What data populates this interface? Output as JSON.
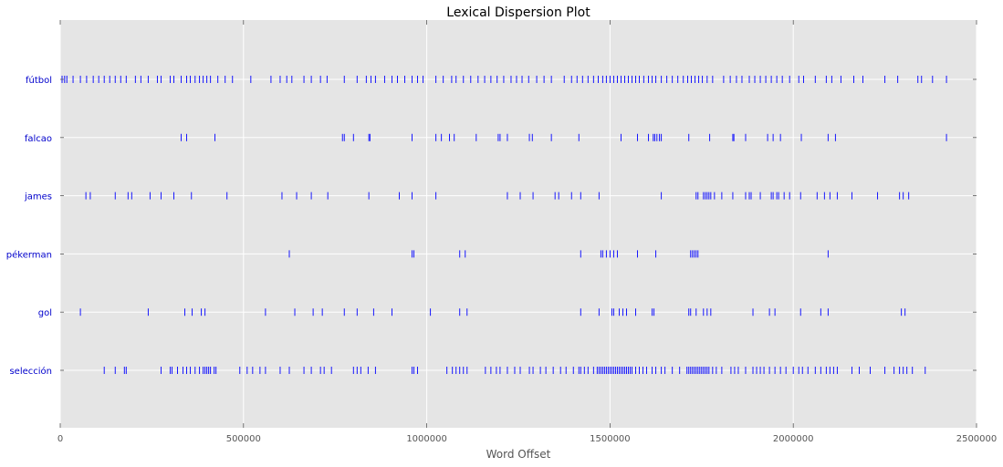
{
  "chart_data": {
    "type": "scatter",
    "title": "Lexical Dispersion Plot",
    "xlabel": "Word Offset",
    "ylabel": "",
    "xlim": [
      0,
      2500000
    ],
    "x_ticks": [
      0,
      500000,
      1000000,
      1500000,
      2000000,
      2500000
    ],
    "x_tick_labels": [
      "0",
      "500000",
      "1000000",
      "1500000",
      "2000000",
      "2500000"
    ],
    "categories": [
      "fútbol",
      "falcao",
      "james",
      "pékerman",
      "gol",
      "selección"
    ],
    "grid": true,
    "marker_color": "#0000ff",
    "series": [
      {
        "name": "fútbol",
        "x": [
          5000,
          12000,
          18000,
          35000,
          55000,
          72000,
          90000,
          105000,
          120000,
          135000,
          150000,
          165000,
          180000,
          205000,
          220000,
          240000,
          265000,
          275000,
          300000,
          310000,
          330000,
          345000,
          355000,
          368000,
          380000,
          390000,
          400000,
          410000,
          430000,
          450000,
          470000,
          520000,
          575000,
          600000,
          618000,
          632000,
          665000,
          685000,
          710000,
          728000,
          775000,
          810000,
          835000,
          848000,
          860000,
          885000,
          905000,
          920000,
          940000,
          960000,
          975000,
          990000,
          1025000,
          1045000,
          1068000,
          1080000,
          1100000,
          1120000,
          1140000,
          1158000,
          1175000,
          1192000,
          1210000,
          1230000,
          1245000,
          1260000,
          1278000,
          1300000,
          1320000,
          1340000,
          1375000,
          1395000,
          1410000,
          1425000,
          1440000,
          1455000,
          1468000,
          1480000,
          1490000,
          1500000,
          1510000,
          1520000,
          1530000,
          1540000,
          1550000,
          1560000,
          1570000,
          1580000,
          1592000,
          1605000,
          1615000,
          1625000,
          1640000,
          1655000,
          1670000,
          1685000,
          1700000,
          1712000,
          1722000,
          1732000,
          1742000,
          1752000,
          1765000,
          1780000,
          1810000,
          1828000,
          1845000,
          1860000,
          1880000,
          1895000,
          1910000,
          1925000,
          1940000,
          1955000,
          1970000,
          1990000,
          2015000,
          2028000,
          2060000,
          2090000,
          2105000,
          2130000,
          2165000,
          2190000,
          2250000,
          2285000,
          2340000,
          2350000,
          2380000,
          2418000
        ]
      },
      {
        "name": "falcao",
        "x": [
          330000,
          345000,
          422000,
          770000,
          775000,
          800000,
          842000,
          845000,
          960000,
          1025000,
          1040000,
          1062000,
          1075000,
          1135000,
          1195000,
          1200000,
          1220000,
          1280000,
          1288000,
          1340000,
          1415000,
          1530000,
          1575000,
          1605000,
          1618000,
          1622000,
          1628000,
          1635000,
          1640000,
          1715000,
          1772000,
          1835000,
          1838000,
          1870000,
          1930000,
          1945000,
          1965000,
          2022000,
          2095000,
          2115000,
          2418000
        ]
      },
      {
        "name": "james",
        "x": [
          70000,
          82000,
          150000,
          185000,
          195000,
          245000,
          275000,
          310000,
          358000,
          455000,
          605000,
          645000,
          685000,
          730000,
          842000,
          925000,
          960000,
          1025000,
          1220000,
          1255000,
          1290000,
          1350000,
          1360000,
          1395000,
          1420000,
          1470000,
          1640000,
          1735000,
          1740000,
          1755000,
          1760000,
          1765000,
          1770000,
          1775000,
          1785000,
          1805000,
          1835000,
          1870000,
          1880000,
          1885000,
          1910000,
          1940000,
          1945000,
          1955000,
          1960000,
          1975000,
          1990000,
          2020000,
          2065000,
          2085000,
          2100000,
          2120000,
          2160000,
          2230000,
          2290000,
          2300000,
          2315000
        ]
      },
      {
        "name": "pékerman",
        "x": [
          625000,
          960000,
          965000,
          1090000,
          1105000,
          1420000,
          1475000,
          1480000,
          1490000,
          1500000,
          1510000,
          1520000,
          1575000,
          1625000,
          1720000,
          1725000,
          1730000,
          1735000,
          1740000,
          2095000
        ]
      },
      {
        "name": "gol",
        "x": [
          55000,
          240000,
          340000,
          360000,
          385000,
          395000,
          560000,
          640000,
          690000,
          715000,
          775000,
          810000,
          855000,
          905000,
          1010000,
          1090000,
          1110000,
          1420000,
          1470000,
          1505000,
          1510000,
          1525000,
          1535000,
          1545000,
          1570000,
          1615000,
          1620000,
          1715000,
          1720000,
          1735000,
          1755000,
          1765000,
          1775000,
          1890000,
          1935000,
          1950000,
          2020000,
          2075000,
          2095000,
          2295000,
          2305000
        ]
      },
      {
        "name": "selección",
        "x": [
          120000,
          150000,
          175000,
          180000,
          275000,
          300000,
          305000,
          320000,
          335000,
          345000,
          355000,
          368000,
          380000,
          390000,
          395000,
          400000,
          405000,
          410000,
          420000,
          425000,
          490000,
          510000,
          525000,
          545000,
          560000,
          600000,
          625000,
          665000,
          685000,
          710000,
          720000,
          740000,
          800000,
          810000,
          820000,
          840000,
          860000,
          960000,
          965000,
          975000,
          1055000,
          1070000,
          1080000,
          1090000,
          1100000,
          1110000,
          1160000,
          1175000,
          1190000,
          1200000,
          1220000,
          1240000,
          1255000,
          1280000,
          1290000,
          1310000,
          1325000,
          1345000,
          1365000,
          1380000,
          1400000,
          1415000,
          1420000,
          1430000,
          1440000,
          1455000,
          1465000,
          1470000,
          1475000,
          1480000,
          1485000,
          1490000,
          1495000,
          1500000,
          1505000,
          1510000,
          1515000,
          1520000,
          1525000,
          1530000,
          1535000,
          1540000,
          1545000,
          1550000,
          1555000,
          1560000,
          1570000,
          1580000,
          1590000,
          1600000,
          1615000,
          1625000,
          1640000,
          1650000,
          1670000,
          1690000,
          1710000,
          1715000,
          1720000,
          1725000,
          1730000,
          1735000,
          1740000,
          1745000,
          1750000,
          1755000,
          1760000,
          1765000,
          1770000,
          1780000,
          1790000,
          1805000,
          1830000,
          1840000,
          1850000,
          1870000,
          1890000,
          1900000,
          1910000,
          1920000,
          1935000,
          1950000,
          1965000,
          1980000,
          2000000,
          2015000,
          2025000,
          2040000,
          2060000,
          2075000,
          2090000,
          2100000,
          2110000,
          2120000,
          2160000,
          2180000,
          2210000,
          2250000,
          2275000,
          2290000,
          2300000,
          2310000,
          2325000,
          2360000
        ]
      }
    ]
  }
}
